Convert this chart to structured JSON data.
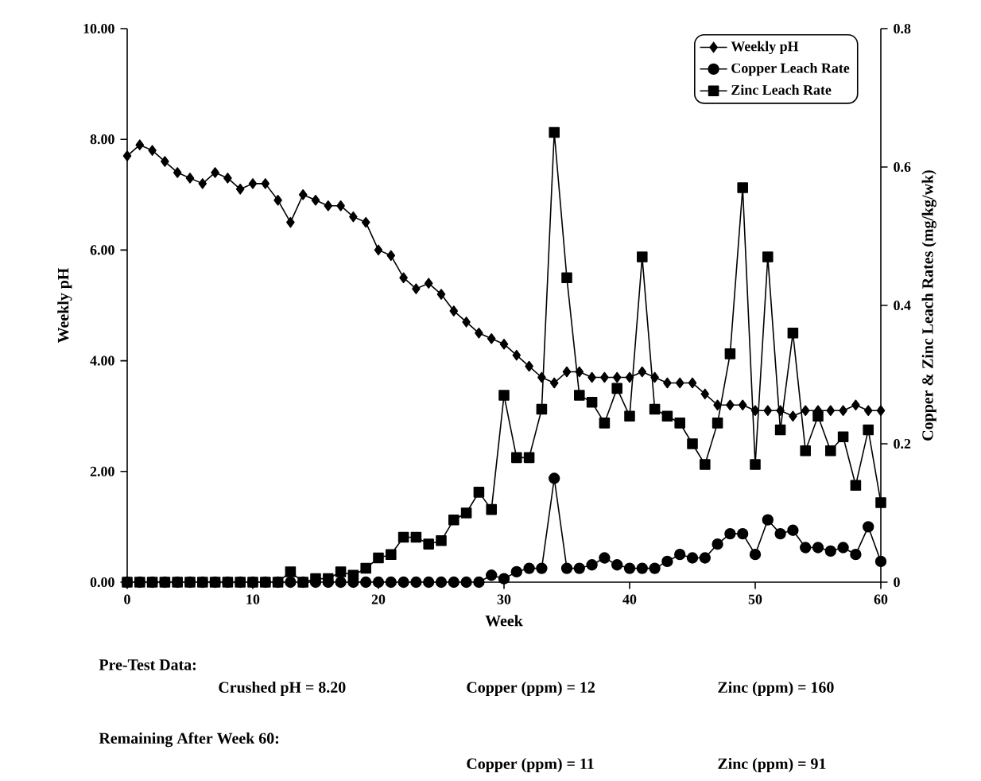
{
  "chart_data": {
    "type": "line",
    "xlabel": "Week",
    "ylabel": "Weekly pH",
    "y2label": "Copper & Zinc Leach Rates (mg/kg/wk)",
    "x": [
      0,
      1,
      2,
      3,
      4,
      5,
      6,
      7,
      8,
      9,
      10,
      11,
      12,
      13,
      14,
      15,
      16,
      17,
      18,
      19,
      20,
      21,
      22,
      23,
      24,
      25,
      26,
      27,
      28,
      29,
      30,
      31,
      32,
      33,
      34,
      35,
      36,
      37,
      38,
      39,
      40,
      41,
      42,
      43,
      44,
      45,
      46,
      47,
      48,
      49,
      50,
      51,
      52,
      53,
      54,
      55,
      56,
      57,
      58,
      59,
      60
    ],
    "series": [
      {
        "name": "Weekly pH",
        "color": "#000000",
        "marker": "diamond",
        "values": [
          7.7,
          7.9,
          7.8,
          7.6,
          7.4,
          7.3,
          7.2,
          7.4,
          7.3,
          7.1,
          7.2,
          7.2,
          6.9,
          6.5,
          7.0,
          6.9,
          6.8,
          6.8,
          6.6,
          6.5,
          6.0,
          5.9,
          5.5,
          5.3,
          5.4,
          5.2,
          4.9,
          4.7,
          4.5,
          4.4,
          4.3,
          4.1,
          3.9,
          3.7,
          3.6,
          3.8,
          3.8,
          3.7,
          3.7,
          3.7,
          3.7,
          3.8,
          3.7,
          3.6,
          3.6,
          3.6,
          3.4,
          3.2,
          3.2,
          3.2,
          3.1,
          3.1,
          3.1,
          3.0,
          3.1,
          3.1,
          3.1,
          3.1,
          3.2,
          3.1,
          3.1
        ]
      },
      {
        "name": "Copper Leach Rate",
        "color": "#000000",
        "marker": "circle",
        "axis": "y2",
        "values": [
          0,
          0,
          0,
          0,
          0,
          0,
          0,
          0,
          0,
          0,
          0,
          0,
          0,
          0,
          0,
          0,
          0,
          0,
          0,
          0,
          0,
          0,
          0,
          0,
          0,
          0,
          0,
          0,
          0,
          0.01,
          0.005,
          0.015,
          0.02,
          0.02,
          0.15,
          0.02,
          0.02,
          0.025,
          0.035,
          0.025,
          0.02,
          0.02,
          0.02,
          0.03,
          0.04,
          0.035,
          0.035,
          0.055,
          0.07,
          0.07,
          0.04,
          0.09,
          0.07,
          0.075,
          0.05,
          0.05,
          0.045,
          0.05,
          0.04,
          0.08,
          0.03
        ]
      },
      {
        "name": "Zinc Leach Rate",
        "color": "#000000",
        "marker": "square",
        "axis": "y2",
        "values": [
          0,
          0,
          0,
          0,
          0,
          0,
          0,
          0,
          0,
          0,
          0,
          0,
          0,
          0.015,
          0,
          0.005,
          0.005,
          0.015,
          0.01,
          0.02,
          0.035,
          0.04,
          0.065,
          0.065,
          0.055,
          0.06,
          0.09,
          0.1,
          0.13,
          0.105,
          0.27,
          0.18,
          0.18,
          0.25,
          0.65,
          0.44,
          0.27,
          0.26,
          0.23,
          0.28,
          0.24,
          0.47,
          0.25,
          0.24,
          0.23,
          0.2,
          0.17,
          0.23,
          0.33,
          0.57,
          0.17,
          0.47,
          0.22,
          0.36,
          0.19,
          0.24,
          0.19,
          0.21,
          0.14,
          0.22,
          0.115
        ]
      }
    ],
    "xlim": [
      0,
      60
    ],
    "xticks": [
      0,
      10,
      20,
      30,
      40,
      50,
      60
    ],
    "ylim": [
      0,
      10
    ],
    "yticks": [
      {
        "value": 0,
        "label": "0.00"
      },
      {
        "value": 2,
        "label": "2.00"
      },
      {
        "value": 4,
        "label": "4.00"
      },
      {
        "value": 6,
        "label": "6.00"
      },
      {
        "value": 8,
        "label": "8.00"
      },
      {
        "value": 10,
        "label": "10.00"
      }
    ],
    "y2lim": [
      0,
      0.8
    ],
    "y2ticks": [
      0,
      0.2,
      0.4,
      0.6,
      0.8
    ],
    "legend": "top right",
    "grid": false,
    "line_style": "solid",
    "annotations": [
      "Pre-Test Data:",
      "Crushed pH = 8.20",
      "Copper (ppm) = 12",
      "Zinc (ppm) = 160",
      "Remaining After Week 60:",
      "Copper (ppm) = 11",
      "Zinc (ppm) = 91"
    ]
  }
}
